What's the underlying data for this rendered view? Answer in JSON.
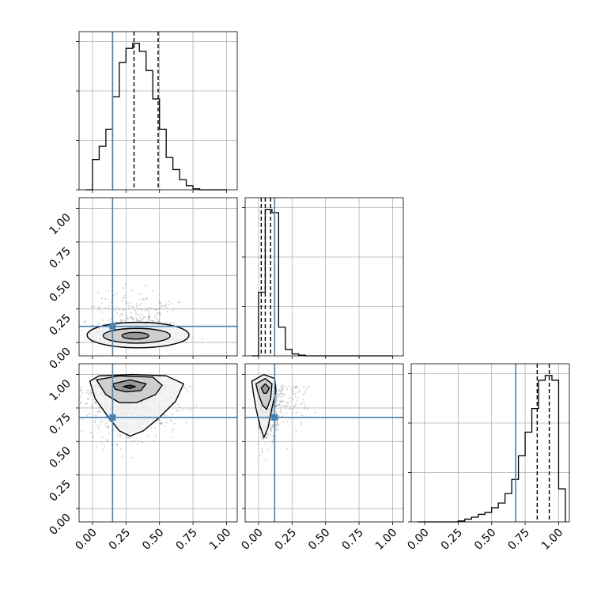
{
  "chart_data": {
    "type": "corner",
    "parameters": 3,
    "truths": [
      0.15,
      0.12,
      0.68
    ],
    "truth_color": "#4682b4",
    "axis_range": [
      -0.1,
      1.08
    ],
    "tick_values": [
      0.0,
      0.25,
      0.5,
      0.75,
      1.0
    ],
    "tick_labels": [
      "0.00",
      "0.25",
      "0.50",
      "0.75",
      "1.00"
    ],
    "grid": true,
    "diagonal": [
      {
        "param_index": 0,
        "quantiles": [
          0.15,
          0.31,
          0.49
        ],
        "bin_edges": [
          -0.05,
          0.0,
          0.05,
          0.1,
          0.15,
          0.2,
          0.25,
          0.3,
          0.35,
          0.4,
          0.45,
          0.5,
          0.55,
          0.6,
          0.65,
          0.7,
          0.75,
          0.8,
          0.85,
          0.9,
          0.95,
          1.0
        ],
        "counts": [
          0,
          30,
          43,
          60,
          92,
          126,
          140,
          145,
          137,
          118,
          90,
          60,
          32,
          20,
          10,
          4,
          1,
          0,
          0,
          0,
          0
        ]
      },
      {
        "param_index": 1,
        "quantiles": [
          0.02,
          0.05,
          0.09
        ],
        "bin_edges": [
          -0.05,
          0.0,
          0.05,
          0.1,
          0.15,
          0.2,
          0.25,
          0.3,
          0.35,
          0.4,
          0.45,
          0.5,
          0.55,
          0.6,
          0.65,
          0.7,
          0.75,
          0.8,
          0.85,
          0.9,
          0.95,
          1.0
        ],
        "counts": [
          0,
          100,
          230,
          225,
          45,
          10,
          3,
          1,
          0,
          0,
          0,
          0,
          0,
          0,
          0,
          0,
          0,
          0,
          0,
          0,
          0
        ]
      },
      {
        "param_index": 2,
        "quantiles": [
          0.68,
          0.84,
          0.93
        ],
        "bin_edges": [
          -0.05,
          0.0,
          0.05,
          0.1,
          0.15,
          0.2,
          0.25,
          0.3,
          0.35,
          0.4,
          0.45,
          0.5,
          0.55,
          0.6,
          0.65,
          0.7,
          0.75,
          0.8,
          0.85,
          0.9,
          0.95,
          1.0,
          1.05
        ],
        "counts": [
          0,
          0,
          0,
          0,
          0,
          0,
          1,
          3,
          5,
          8,
          10,
          15,
          20,
          30,
          45,
          70,
          95,
          120,
          150,
          155,
          150,
          35
        ]
      }
    ],
    "off_diagonal": [
      {
        "x_param": 0,
        "y_param": 1,
        "peak": [
          0.33,
          0.05
        ],
        "contour_levels": [
          {
            "cx": 0.34,
            "cy": 0.055,
            "rx": 0.38,
            "ry": 0.095
          },
          {
            "cx": 0.33,
            "cy": 0.05,
            "rx": 0.25,
            "ry": 0.055
          },
          {
            "cx": 0.32,
            "cy": 0.05,
            "rx": 0.1,
            "ry": 0.025
          }
        ]
      },
      {
        "x_param": 0,
        "y_param": 2,
        "peak": [
          0.28,
          0.91
        ],
        "contour_levels": [
          {
            "points": [
              [
                -0.02,
                0.95
              ],
              [
                0.05,
                0.99
              ],
              [
                0.3,
                1.0
              ],
              [
                0.55,
                0.99
              ],
              [
                0.68,
                0.93
              ],
              [
                0.62,
                0.8
              ],
              [
                0.5,
                0.68
              ],
              [
                0.38,
                0.58
              ],
              [
                0.28,
                0.54
              ],
              [
                0.2,
                0.58
              ],
              [
                0.12,
                0.68
              ],
              [
                0.02,
                0.82
              ]
            ]
          },
          {
            "points": [
              [
                0.03,
                0.96
              ],
              [
                0.2,
                0.99
              ],
              [
                0.45,
                0.98
              ],
              [
                0.52,
                0.92
              ],
              [
                0.47,
                0.85
              ],
              [
                0.33,
                0.79
              ],
              [
                0.2,
                0.79
              ],
              [
                0.1,
                0.85
              ]
            ]
          },
          {
            "points": [
              [
                0.15,
                0.93
              ],
              [
                0.28,
                0.96
              ],
              [
                0.4,
                0.93
              ],
              [
                0.36,
                0.88
              ],
              [
                0.25,
                0.87
              ],
              [
                0.17,
                0.89
              ]
            ]
          },
          {
            "points": [
              [
                0.23,
                0.91
              ],
              [
                0.28,
                0.92
              ],
              [
                0.32,
                0.91
              ],
              [
                0.28,
                0.895
              ]
            ]
          }
        ]
      },
      {
        "x_param": 1,
        "y_param": 2,
        "peak": [
          0.05,
          0.9
        ],
        "contour_levels": [
          {
            "points": [
              [
                -0.05,
                0.95
              ],
              [
                0.04,
                1.0
              ],
              [
                0.12,
                0.97
              ],
              [
                0.13,
                0.88
              ],
              [
                0.1,
                0.75
              ],
              [
                0.07,
                0.6
              ],
              [
                0.04,
                0.53
              ],
              [
                0.01,
                0.62
              ],
              [
                -0.02,
                0.75
              ],
              [
                -0.04,
                0.87
              ]
            ]
          },
          {
            "points": [
              [
                -0.02,
                0.93
              ],
              [
                0.05,
                0.97
              ],
              [
                0.1,
                0.93
              ],
              [
                0.09,
                0.82
              ],
              [
                0.06,
                0.74
              ],
              [
                0.03,
                0.77
              ],
              [
                0.0,
                0.85
              ]
            ]
          },
          {
            "points": [
              [
                0.02,
                0.9
              ],
              [
                0.05,
                0.93
              ],
              [
                0.08,
                0.9
              ],
              [
                0.06,
                0.86
              ],
              [
                0.04,
                0.86
              ]
            ]
          }
        ]
      }
    ]
  }
}
